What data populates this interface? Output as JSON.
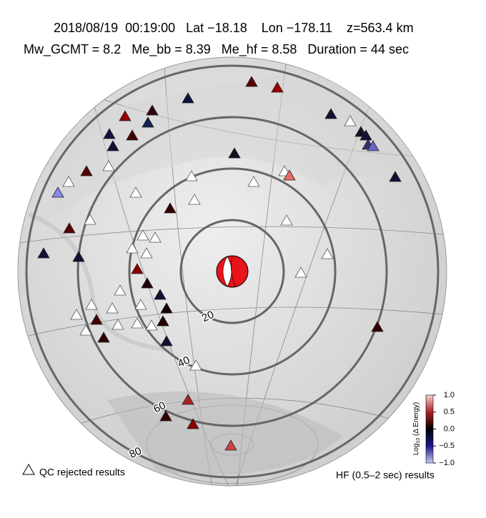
{
  "header": {
    "line1": "2018/08/19  00:19:00   Lat −18.18    Lon −178.11    z=563.4 km",
    "line2": "Mw_GCMT = 8.2   Me_bb = 8.39   Me_hf = 8.58   Duration = 44 sec"
  },
  "distance_rings": [
    20,
    40,
    60,
    80
  ],
  "colorbar": {
    "label_main": "Log",
    "label_sub": "10",
    "label_rest": " (Δ Energy)",
    "ticks": [
      {
        "value": 1,
        "label": "1.0"
      },
      0.5,
      {
        "value": 0,
        "label": "0.0"
      },
      {
        "value": -0.5,
        "label": "−0.5"
      },
      {
        "value": -1,
        "label": "−1.0"
      }
    ],
    "lim": [
      -1,
      1
    ]
  },
  "legend": {
    "rejected": "QC rejected results",
    "results": "HF (0.5–2 sec) results"
  }
}
